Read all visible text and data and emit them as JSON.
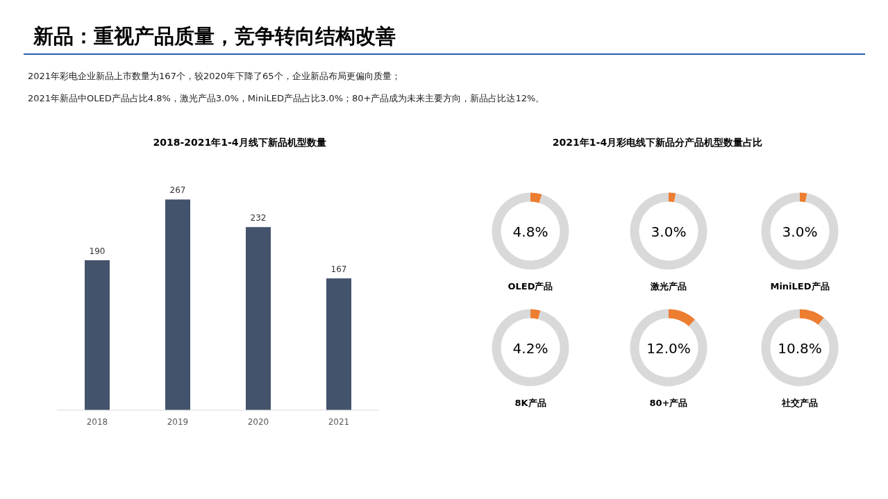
{
  "chart_data": [
    {
      "type": "other",
      "title": "新品：重视产品质量，竞争转向结构改善",
      "annotations": [
        "2021年彩电企业新品上市数量为167个，较2020年下降了65个，企业新品布局更偏向质量；",
        "2021年新品中OLED产品占比4.8%，激光产品3.0%，MiniLED产品占比3.0%；80+产品成为未来主要方向，新品占比达12%。"
      ]
    },
    {
      "type": "bar",
      "title": "2018-2021年1-4月线下新品机型数量",
      "categories": [
        "2018",
        "2019",
        "2020",
        "2021"
      ],
      "values": [
        190,
        267,
        232,
        167
      ],
      "color": "#43536b",
      "data_labels": true
    },
    {
      "type": "donut",
      "title": "OLED产品",
      "annotations": [
        "2021年1-4月彩电线下新品分产品机型数量占比",
        "4.8%"
      ],
      "categories": [
        null,
        null
      ],
      "values": [
        4.8,
        95.2
      ],
      "colors": [
        "#ed7d31",
        "#d9d9d9"
      ]
    },
    {
      "type": "donut",
      "title": "激光产品",
      "annotations": [
        "3.0%"
      ],
      "categories": [
        null,
        null
      ],
      "values": [
        3.0,
        97.0
      ],
      "colors": [
        "#ed7d31",
        "#d9d9d9"
      ]
    },
    {
      "type": "donut",
      "title": "MiniLED产品",
      "annotations": [
        "3.0%"
      ],
      "categories": [
        null,
        null
      ],
      "values": [
        3.0,
        97.0
      ],
      "colors": [
        "#ed7d31",
        "#d9d9d9"
      ]
    },
    {
      "type": "donut",
      "title": "8K产品",
      "annotations": [
        "4.2%"
      ],
      "categories": [
        null,
        null
      ],
      "values": [
        4.2,
        95.8
      ],
      "colors": [
        "#ed7d31",
        "#d9d9d9"
      ]
    },
    {
      "type": "donut",
      "title": "80+产品",
      "annotations": [
        "12.0%"
      ],
      "categories": [
        null,
        null
      ],
      "values": [
        12.0,
        88.0
      ],
      "colors": [
        "#ed7d31",
        "#d9d9d9"
      ]
    },
    {
      "type": "donut",
      "title": "社交产品",
      "annotations": [
        "10.8%"
      ],
      "categories": [
        null,
        null
      ],
      "values": [
        10.8,
        89.2
      ],
      "colors": [
        "#ed7d31",
        "#d9d9d9"
      ]
    }
  ]
}
